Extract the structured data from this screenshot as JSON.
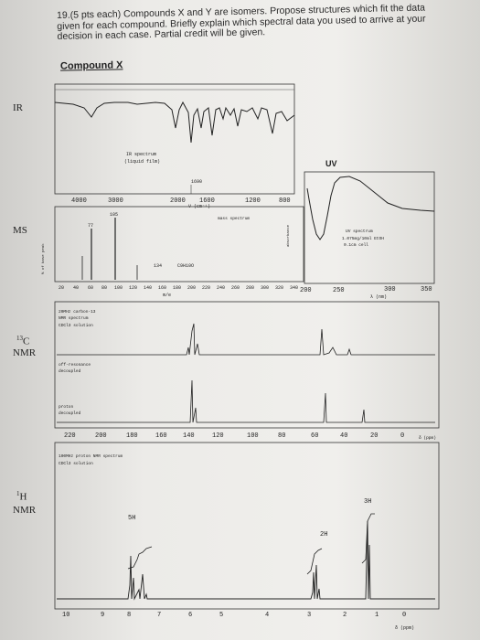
{
  "question": {
    "line1": "19.(5 pts each) Compounds X and Y are isomers. Propose structures which fit the data",
    "line2": "given for each compound. Briefly explain which spectral data you used to arrive at your",
    "line3": "decision in each case. Partial credit will be given."
  },
  "compound_label": "Compound X",
  "side_labels": {
    "ir": "IR",
    "ms": "MS",
    "c13_super": "13",
    "c13": "C",
    "c13_nmr": "NMR",
    "h1_super": "1",
    "h1": "H",
    "h1_nmr": "NMR"
  },
  "ir": {
    "caption1": "IR spectrum",
    "caption2": "(liquid film)",
    "ticks": [
      "4000",
      "3000",
      "2000",
      "1600",
      "1200",
      "800"
    ],
    "peak_label": "1690",
    "axis_unit": "V (cm⁻¹)"
  },
  "uv": {
    "title": "UV",
    "ticks": [
      "200",
      "250",
      "300",
      "350"
    ],
    "unit": "λ (nm)",
    "caption1": "UV spectrum",
    "caption2": "1.075mg/10ml EtOH",
    "caption3": "0.1cm cell",
    "ylabel": "absorbance"
  },
  "ms": {
    "title": "mass spectrum",
    "peak_105": "105",
    "peak_77": "77",
    "mplus": "134",
    "formula": "C9H10O",
    "ticks": [
      "20",
      "40",
      "60",
      "80",
      "100",
      "120",
      "140",
      "160",
      "180",
      "200",
      "220",
      "240",
      "260",
      "280",
      "300",
      "320",
      "340"
    ],
    "xlabel": "m/e",
    "ylabel": "% of base peak"
  },
  "cnmr": {
    "caption1": "20MHz carbon-13",
    "caption2": "NMR spectrum",
    "caption3": "CDCl3 solution",
    "offres1": "off-resonance",
    "offres2": "decoupled",
    "proton1": "proton",
    "proton2": "decoupled",
    "ticks": [
      "220",
      "200",
      "180",
      "160",
      "140",
      "120",
      "100",
      "80",
      "60",
      "40",
      "20",
      "0"
    ],
    "unit": "δ (ppm)"
  },
  "hnmr": {
    "caption1": "100MHz proton NMR spectrum",
    "caption2": "CDCl3 solution",
    "int_5h": "5H",
    "int_2h": "2H",
    "int_3h": "3H",
    "ticks": [
      "10",
      "9",
      "8",
      "7",
      "6",
      "5",
      "4",
      "3",
      "2",
      "1",
      "0"
    ],
    "unit": "δ (ppm)"
  }
}
